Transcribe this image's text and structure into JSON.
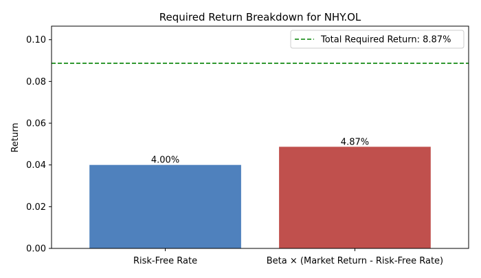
{
  "chart_data": {
    "type": "bar",
    "title": "Required Return Breakdown for NHY.OL",
    "xlabel": "",
    "ylabel": "Return",
    "categories": [
      "Risk-Free Rate",
      "Beta × (Market Return - Risk-Free Rate)"
    ],
    "values": [
      0.04,
      0.0487
    ],
    "data_labels": [
      "4.00%",
      "4.87%"
    ],
    "bar_colors": [
      "#4f81bd",
      "#c0504d"
    ],
    "ylim": [
      0,
      0.1065
    ],
    "yticks": [
      0.0,
      0.02,
      0.04,
      0.06,
      0.08,
      0.1
    ],
    "ytick_labels": [
      "0.00",
      "0.02",
      "0.04",
      "0.06",
      "0.08",
      "0.10"
    ],
    "reference_line": {
      "value": 0.0887,
      "label": "Total Required Return: 8.87%",
      "color": "#008000",
      "style": "dashed"
    },
    "legend": {
      "position": "top-right"
    },
    "grid": false
  }
}
